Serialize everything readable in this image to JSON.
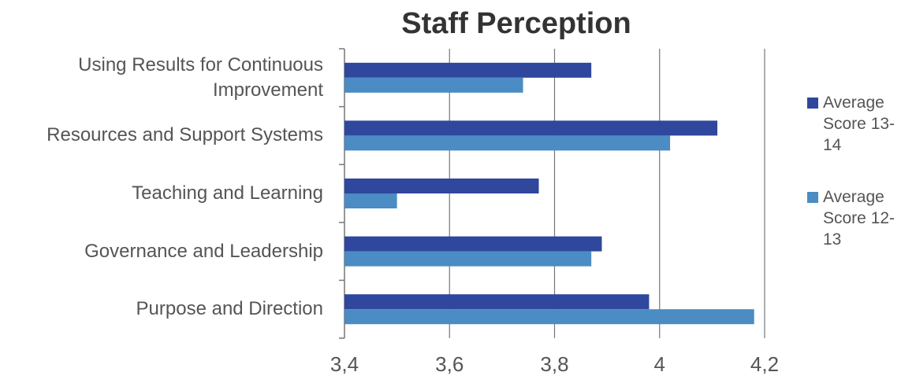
{
  "chart_data": {
    "type": "bar",
    "orientation": "horizontal",
    "title": "Staff Perception",
    "categories": [
      "Using Results for Continuous Improvement",
      "Resources and Support Systems",
      "Teaching and Learning",
      "Governance and Leadership",
      "Purpose and Direction"
    ],
    "series": [
      {
        "name": "Average Score 13-14",
        "color": "#2f479c",
        "values": [
          3.87,
          4.11,
          3.77,
          3.89,
          3.98
        ]
      },
      {
        "name": "Average Score 12-13",
        "color": "#4a8cc3",
        "values": [
          3.74,
          4.02,
          3.5,
          3.87,
          4.18
        ]
      }
    ],
    "xlim": [
      3.4,
      4.2
    ],
    "xticks": [
      {
        "value": 3.4,
        "label": "3,4"
      },
      {
        "value": 3.6,
        "label": "3,6"
      },
      {
        "value": 3.8,
        "label": "3,8"
      },
      4,
      {
        "value": 4.2,
        "label": "4,2"
      }
    ],
    "grid": true,
    "legend": "right"
  }
}
